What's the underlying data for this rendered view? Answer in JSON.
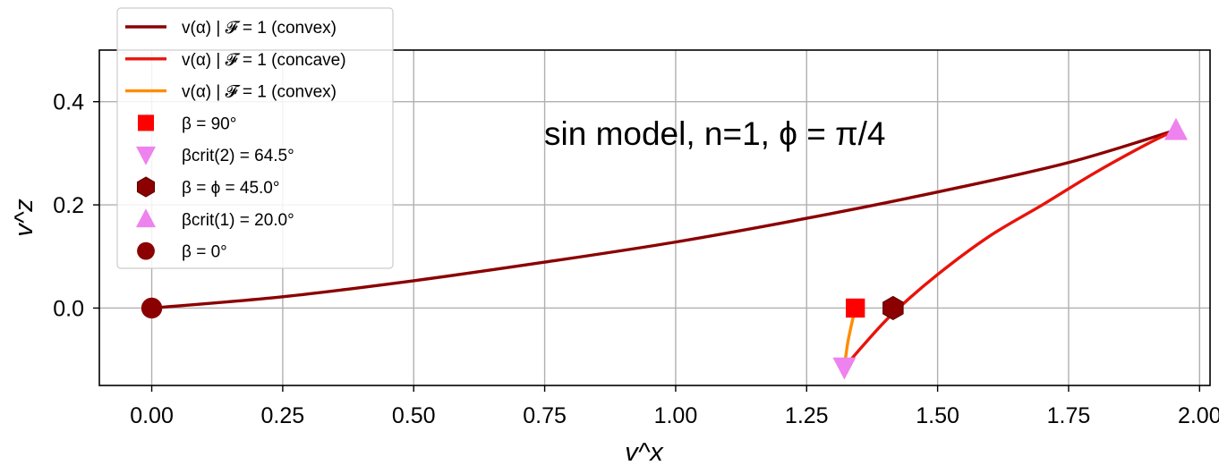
{
  "chart_data": {
    "type": "line",
    "title": "",
    "annotation": "sin model, n=1, ϕ = π/4",
    "xlabel": "v^x",
    "ylabel": "v^z",
    "xlim": [
      -0.1,
      2.02
    ],
    "ylim": [
      -0.15,
      0.5
    ],
    "xticks": [
      0.0,
      0.25,
      0.5,
      0.75,
      1.0,
      1.25,
      1.5,
      1.75,
      2.0
    ],
    "xtick_labels": [
      "0.00",
      "0.25",
      "0.50",
      "0.75",
      "1.00",
      "1.25",
      "1.50",
      "1.75",
      "2.00"
    ],
    "yticks": [
      0.0,
      0.2,
      0.4
    ],
    "ytick_labels": [
      "0.0",
      "0.2",
      "0.4"
    ],
    "grid": true,
    "legend_position": "upper-left",
    "series": [
      {
        "name": "v(α) | 𝓕 = 1 (convex)",
        "color": "#8b0000",
        "points": [
          [
            0.0,
            0.0
          ],
          [
            0.25,
            0.022
          ],
          [
            0.5,
            0.053
          ],
          [
            0.75,
            0.089
          ],
          [
            1.0,
            0.128
          ],
          [
            1.25,
            0.174
          ],
          [
            1.5,
            0.225
          ],
          [
            1.75,
            0.282
          ],
          [
            1.955,
            0.345
          ]
        ]
      },
      {
        "name": "v(α) | 𝓕 = 1 (concave)",
        "color": "#e8130b",
        "points": [
          [
            1.322,
            -0.115
          ],
          [
            1.36,
            -0.07
          ],
          [
            1.415,
            -0.01
          ],
          [
            1.5,
            0.065
          ],
          [
            1.6,
            0.14
          ],
          [
            1.7,
            0.2
          ],
          [
            1.8,
            0.262
          ],
          [
            1.9,
            0.318
          ],
          [
            1.955,
            0.345
          ]
        ]
      },
      {
        "name": "v(α) | 𝓕 = 1 (convex)",
        "color": "#ff8c00",
        "points": [
          [
            1.322,
            -0.115
          ],
          [
            1.328,
            -0.07
          ],
          [
            1.335,
            -0.035
          ],
          [
            1.343,
            0.0
          ]
        ]
      }
    ],
    "markers": [
      {
        "label": "β = 90°",
        "shape": "square",
        "color": "#ff0000",
        "x": 1.343,
        "y": 0.0
      },
      {
        "label": "βcrit(2) = 64.5°",
        "shape": "triangle-down",
        "color": "#ee82ee",
        "x": 1.322,
        "y": -0.115
      },
      {
        "label": "β = ϕ = 45.0°",
        "shape": "hexagon",
        "color": "#8b0000",
        "x": 1.415,
        "y": 0.0
      },
      {
        "label": "βcrit(1) = 20.0°",
        "shape": "triangle-up",
        "color": "#ee82ee",
        "x": 1.955,
        "y": 0.345
      },
      {
        "label": "β = 0°",
        "shape": "circle",
        "color": "#8b0000",
        "x": 0.0,
        "y": 0.0
      }
    ]
  }
}
